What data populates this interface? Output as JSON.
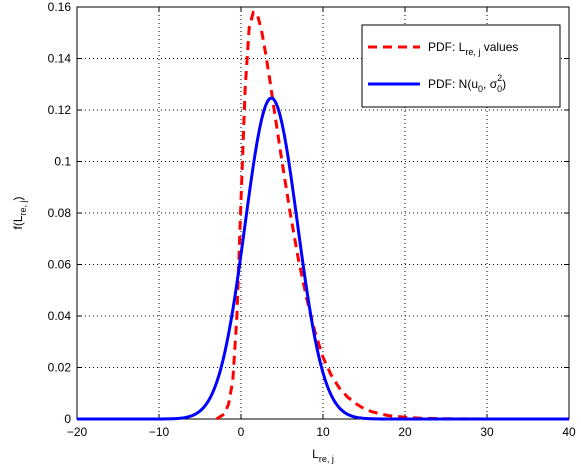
{
  "chart_data": {
    "type": "line",
    "xlabel": {
      "main": "L",
      "sub": "re, j"
    },
    "ylabel": {
      "main": "f(L",
      "sub": "re, j",
      "tail": ")"
    },
    "xlim": [
      -20,
      40
    ],
    "ylim": [
      0,
      0.16
    ],
    "xticks": [
      "−20",
      "−10",
      "0",
      "10",
      "20",
      "30",
      "40"
    ],
    "xtick_values": [
      -20,
      -10,
      0,
      10,
      20,
      30,
      40
    ],
    "yticks": [
      "0",
      "0.02",
      "0.04",
      "0.06",
      "0.08",
      "0.1",
      "0.12",
      "0.14",
      "0.16"
    ],
    "ytick_values": [
      0,
      0.02,
      0.04,
      0.06,
      0.08,
      0.1,
      0.12,
      0.14,
      0.16
    ],
    "grid": true,
    "legend_position": "top-right",
    "series": [
      {
        "legend": {
          "pre": "PDF: L",
          "sub": "re, j",
          "post": " values"
        },
        "color": "#ff0000",
        "style": "dashed",
        "x": [
          -3,
          -2,
          -1.5,
          -1,
          -0.5,
          0,
          0.5,
          1,
          1.5,
          2,
          2.5,
          3,
          3.5,
          4,
          5,
          6,
          7,
          8,
          9,
          10,
          11,
          12,
          13,
          14,
          15,
          16,
          17,
          18,
          20,
          22,
          25,
          30,
          34
        ],
        "y": [
          0,
          0.002,
          0.006,
          0.015,
          0.04,
          0.085,
          0.128,
          0.152,
          0.158,
          0.157,
          0.151,
          0.142,
          0.132,
          0.121,
          0.1,
          0.08,
          0.062,
          0.047,
          0.034,
          0.024,
          0.017,
          0.012,
          0.0085,
          0.006,
          0.004,
          0.0028,
          0.002,
          0.0013,
          0.0007,
          0.0003,
          0.0001,
          0,
          0
        ]
      },
      {
        "legend": {
          "pre": "PDF: N(u",
          "sub1": "0",
          "mid": ", σ",
          "sup": "2",
          "sub2": "0",
          "post": ")"
        },
        "color": "#0000ff",
        "style": "solid",
        "mean": 3.7,
        "std": 3.2,
        "x_range": [
          -20,
          40
        ]
      }
    ]
  }
}
